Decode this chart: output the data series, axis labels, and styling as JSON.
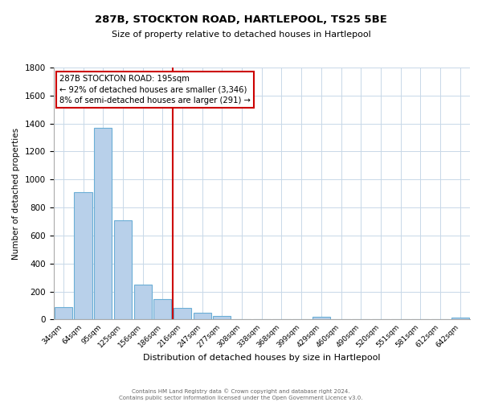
{
  "title": "287B, STOCKTON ROAD, HARTLEPOOL, TS25 5BE",
  "subtitle": "Size of property relative to detached houses in Hartlepool",
  "xlabel": "Distribution of detached houses by size in Hartlepool",
  "ylabel": "Number of detached properties",
  "bin_labels": [
    "34sqm",
    "64sqm",
    "95sqm",
    "125sqm",
    "156sqm",
    "186sqm",
    "216sqm",
    "247sqm",
    "277sqm",
    "308sqm",
    "338sqm",
    "368sqm",
    "399sqm",
    "429sqm",
    "460sqm",
    "490sqm",
    "520sqm",
    "551sqm",
    "581sqm",
    "612sqm",
    "642sqm"
  ],
  "bar_heights": [
    90,
    910,
    1370,
    710,
    250,
    145,
    85,
    50,
    28,
    0,
    0,
    0,
    0,
    18,
    0,
    0,
    0,
    0,
    0,
    0,
    15
  ],
  "bar_color": "#b8d0ea",
  "bar_edge_color": "#6baed6",
  "vline_x": 5.5,
  "vline_color": "#cc0000",
  "ylim": [
    0,
    1800
  ],
  "yticks": [
    0,
    200,
    400,
    600,
    800,
    1000,
    1200,
    1400,
    1600,
    1800
  ],
  "annotation_title": "287B STOCKTON ROAD: 195sqm",
  "annotation_line1": "← 92% of detached houses are smaller (3,346)",
  "annotation_line2": "8% of semi-detached houses are larger (291) →",
  "annotation_box_color": "#ffffff",
  "annotation_box_edge": "#cc0000",
  "footer_line1": "Contains HM Land Registry data © Crown copyright and database right 2024.",
  "footer_line2": "Contains public sector information licensed under the Open Government Licence v3.0.",
  "background_color": "#ffffff",
  "grid_color": "#c8d8e8"
}
